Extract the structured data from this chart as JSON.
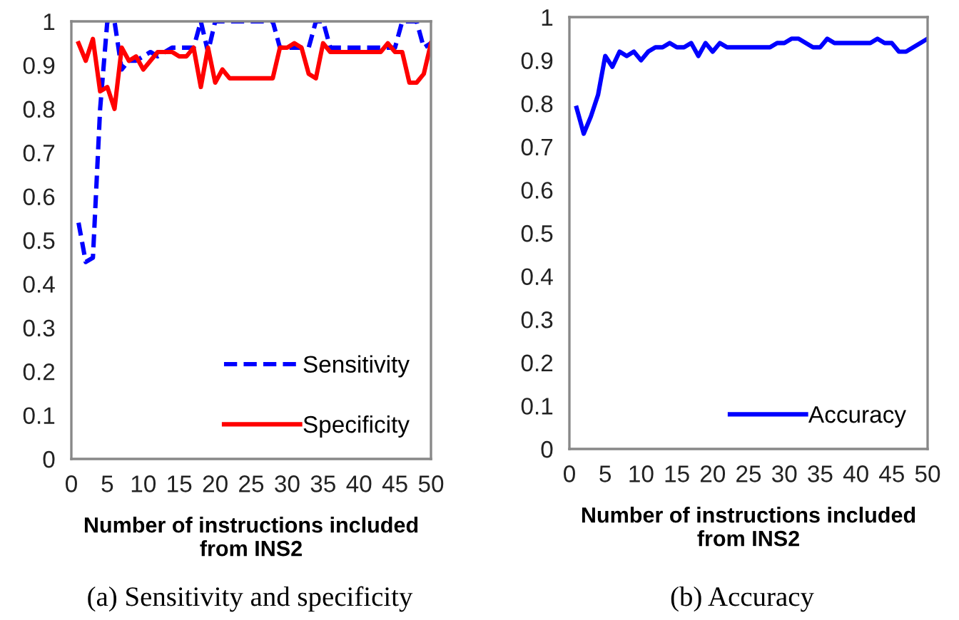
{
  "chart_data": [
    {
      "type": "line",
      "xlabel": "Number of instructions included\nfrom INS2",
      "annotations": [
        "(a) Sensitivity and specificity"
      ],
      "x": [
        1,
        2,
        3,
        4,
        5,
        6,
        7,
        8,
        9,
        10,
        11,
        12,
        13,
        14,
        15,
        16,
        17,
        18,
        19,
        20,
        21,
        22,
        23,
        24,
        25,
        26,
        27,
        28,
        29,
        30,
        31,
        32,
        33,
        34,
        35,
        36,
        37,
        38,
        39,
        40,
        41,
        42,
        43,
        44,
        45,
        46,
        47,
        48,
        49,
        50
      ],
      "series": [
        {
          "name": "Sensitivity",
          "color": "#0000ff",
          "line_style": "dashed",
          "values": [
            0.54,
            0.45,
            0.46,
            0.8,
            1.0,
            1.0,
            0.89,
            0.91,
            0.91,
            0.92,
            0.93,
            0.92,
            0.93,
            0.94,
            0.94,
            0.94,
            0.94,
            1.0,
            0.93,
            1.0,
            1.0,
            1.0,
            1.0,
            1.0,
            1.0,
            1.0,
            1.0,
            1.0,
            0.94,
            0.94,
            0.94,
            0.94,
            0.94,
            1.0,
            1.0,
            0.94,
            0.94,
            0.94,
            0.94,
            0.94,
            0.94,
            0.94,
            0.94,
            0.94,
            0.94,
            1.0,
            1.0,
            1.0,
            0.94,
            0.95
          ]
        },
        {
          "name": "Specificity",
          "color": "#ff0000",
          "line_style": "solid",
          "values": [
            0.95,
            0.91,
            0.96,
            0.84,
            0.85,
            0.8,
            0.94,
            0.91,
            0.92,
            0.89,
            0.91,
            0.93,
            0.93,
            0.93,
            0.92,
            0.92,
            0.94,
            0.85,
            0.94,
            0.86,
            0.89,
            0.87,
            0.87,
            0.87,
            0.87,
            0.87,
            0.87,
            0.87,
            0.94,
            0.94,
            0.95,
            0.94,
            0.88,
            0.87,
            0.95,
            0.93,
            0.93,
            0.93,
            0.93,
            0.93,
            0.93,
            0.93,
            0.93,
            0.95,
            0.93,
            0.93,
            0.86,
            0.86,
            0.88,
            0.95
          ]
        }
      ],
      "xlim": [
        0,
        50
      ],
      "xticks": [
        0,
        5,
        10,
        15,
        20,
        25,
        30,
        35,
        40,
        45,
        50
      ],
      "ylim": [
        0,
        1
      ],
      "yticks": [
        0,
        0.1,
        0.2,
        0.3,
        0.4,
        0.5,
        0.6,
        0.7,
        0.8,
        0.9,
        1
      ],
      "legend": "bottom right",
      "grid": false
    },
    {
      "type": "line",
      "xlabel": "Number of instructions included\nfrom INS2",
      "annotations": [
        "(b) Accuracy"
      ],
      "x": [
        1,
        2,
        3,
        4,
        5,
        6,
        7,
        8,
        9,
        10,
        11,
        12,
        13,
        14,
        15,
        16,
        17,
        18,
        19,
        20,
        21,
        22,
        23,
        24,
        25,
        26,
        27,
        28,
        29,
        30,
        31,
        32,
        33,
        34,
        35,
        36,
        37,
        38,
        39,
        40,
        41,
        42,
        43,
        44,
        45,
        46,
        47,
        48,
        49,
        50
      ],
      "series": [
        {
          "name": "Accuracy",
          "color": "#0000ff",
          "line_style": "solid",
          "values": [
            0.79,
            0.73,
            0.77,
            0.82,
            0.91,
            0.885,
            0.92,
            0.91,
            0.92,
            0.9,
            0.92,
            0.93,
            0.93,
            0.94,
            0.93,
            0.93,
            0.94,
            0.91,
            0.94,
            0.92,
            0.94,
            0.93,
            0.93,
            0.93,
            0.93,
            0.93,
            0.93,
            0.93,
            0.94,
            0.94,
            0.95,
            0.95,
            0.94,
            0.93,
            0.93,
            0.95,
            0.94,
            0.94,
            0.94,
            0.94,
            0.94,
            0.94,
            0.95,
            0.94,
            0.94,
            0.92,
            0.92,
            0.93,
            0.94,
            0.95
          ]
        }
      ],
      "xlim": [
        0,
        50
      ],
      "xticks": [
        0,
        5,
        10,
        15,
        20,
        25,
        30,
        35,
        40,
        45,
        50
      ],
      "ylim": [
        0,
        1
      ],
      "yticks": [
        0,
        0.1,
        0.2,
        0.3,
        0.4,
        0.5,
        0.6,
        0.7,
        0.8,
        0.9,
        1
      ],
      "legend": "bottom right",
      "grid": false
    }
  ]
}
